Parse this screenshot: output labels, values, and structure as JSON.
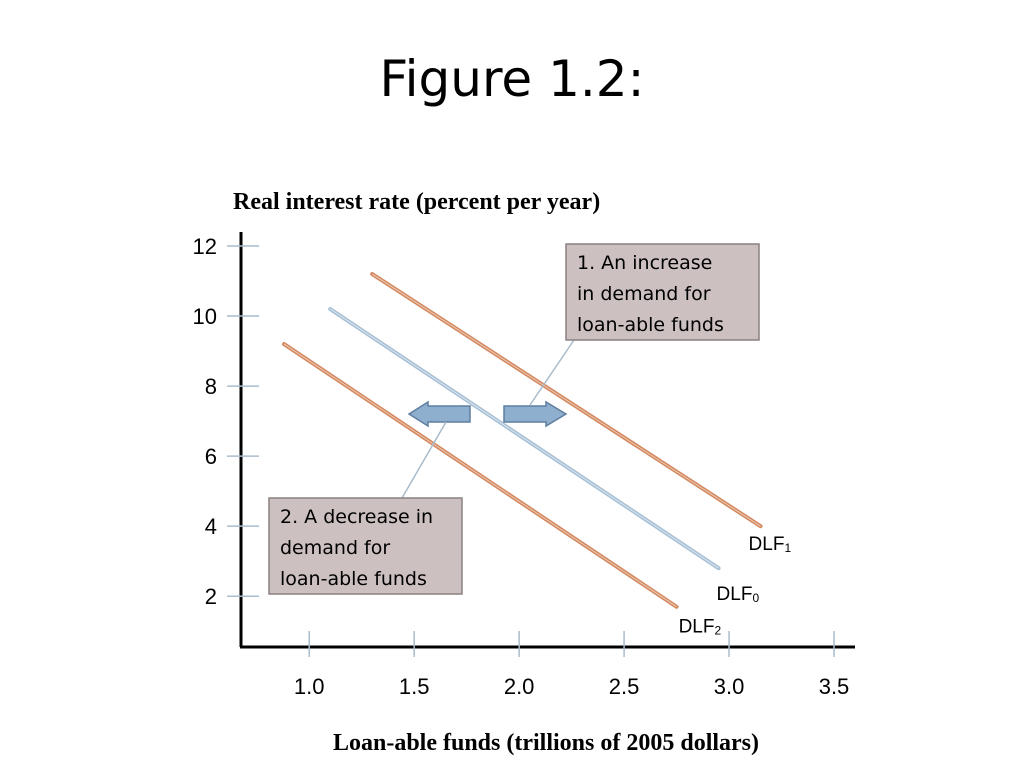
{
  "slide": {
    "title": "Figure 1.2:"
  },
  "chart_data": {
    "type": "line",
    "ylabel": "Real interest rate (percent per year)",
    "xlabel": "Loan-able funds (trillions of 2005 dollars)",
    "x_ticks": [
      "1.0",
      "1.5",
      "2.0",
      "2.5",
      "3.0",
      "3.5"
    ],
    "y_ticks": [
      "2",
      "4",
      "6",
      "8",
      "10",
      "12"
    ],
    "xlim": [
      0.675,
      3.6
    ],
    "ylim": [
      0.55,
      12.4
    ],
    "grid": false,
    "series": [
      {
        "id": "DLF1",
        "name": "DLF",
        "subscript": "1",
        "color": "#d4885e",
        "x": [
          1.3,
          3.15
        ],
        "y": [
          11.2,
          4.0
        ]
      },
      {
        "id": "DLF0",
        "name": "DLF",
        "subscript": "0",
        "color": "#a8c1d6",
        "x": [
          1.1,
          2.95
        ],
        "y": [
          10.2,
          2.8
        ]
      },
      {
        "id": "DLF2",
        "name": "DLF",
        "subscript": "2",
        "color": "#d4885e",
        "x": [
          0.88,
          2.75
        ],
        "y": [
          9.2,
          1.7
        ]
      }
    ],
    "annotations": [
      {
        "id": "callout-increase",
        "lines": [
          "1. An increase",
          "in demand for",
          "loan-able funds"
        ]
      },
      {
        "id": "callout-decrease",
        "lines": [
          "2. A decrease in",
          "demand for",
          "loan-able funds"
        ]
      }
    ],
    "arrows": [
      {
        "id": "arrow-left",
        "direction": "left"
      },
      {
        "id": "arrow-right",
        "direction": "right"
      }
    ],
    "colors": {
      "callout_fill": "#ccc0c0",
      "callout_border": "#8a8080",
      "arrow_fill": "#8fafcf",
      "arrow_border": "#5e7f9f"
    }
  }
}
